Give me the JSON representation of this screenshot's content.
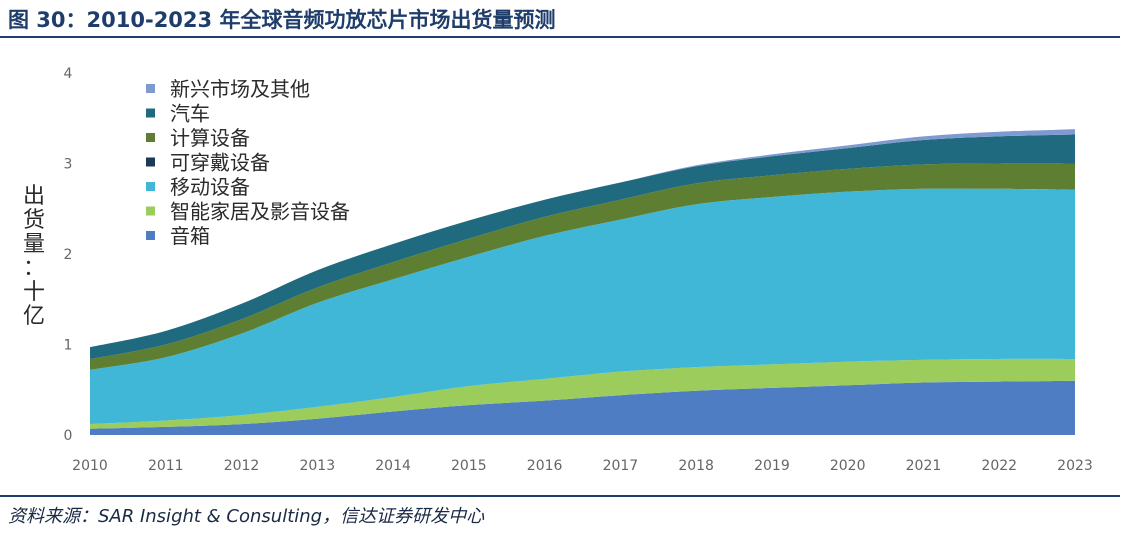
{
  "header": {
    "title": "图 30：2010-2023 年全球音频功放芯片市场出货量预测"
  },
  "footer": {
    "source": "资料来源：SAR Insight & Consulting，信达证券研发中心"
  },
  "chart_data": {
    "type": "area",
    "stacked": true,
    "ylabel": "出货量：十亿",
    "ylim": [
      0,
      4
    ],
    "yticks": [
      "0",
      "1",
      "2",
      "3",
      "4"
    ],
    "categories": [
      "2010",
      "2011",
      "2012",
      "2013",
      "2014",
      "2015",
      "2016",
      "2017",
      "2018",
      "2019",
      "2020",
      "2021",
      "2022",
      "2023"
    ],
    "grid": false,
    "legend_position": "top-left",
    "series": [
      {
        "name": "音箱",
        "color": "#4f7dc3",
        "values": [
          0.07,
          0.09,
          0.12,
          0.18,
          0.26,
          0.33,
          0.38,
          0.44,
          0.49,
          0.52,
          0.55,
          0.58,
          0.59,
          0.6
        ]
      },
      {
        "name": "智能家居及影音设备",
        "color": "#9ccc5c",
        "values": [
          0.05,
          0.07,
          0.1,
          0.13,
          0.16,
          0.21,
          0.24,
          0.26,
          0.26,
          0.26,
          0.26,
          0.25,
          0.25,
          0.24
        ]
      },
      {
        "name": "移动设备",
        "color": "#41b7d8",
        "values": [
          0.6,
          0.7,
          0.9,
          1.15,
          1.3,
          1.43,
          1.58,
          1.68,
          1.8,
          1.85,
          1.88,
          1.89,
          1.88,
          1.87
        ]
      },
      {
        "name": "可穿戴设备",
        "color": "#1b3a5a",
        "values": [
          0.0,
          0.0,
          0.0,
          0.0,
          0.0,
          0.0,
          0.0,
          0.0,
          0.0,
          0.0,
          0.0,
          0.0,
          0.0,
          0.0
        ]
      },
      {
        "name": "计算设备",
        "color": "#5e7f31",
        "values": [
          0.12,
          0.14,
          0.16,
          0.17,
          0.19,
          0.2,
          0.21,
          0.22,
          0.23,
          0.24,
          0.25,
          0.27,
          0.28,
          0.29
        ]
      },
      {
        "name": "汽车",
        "color": "#1f6a7e",
        "values": [
          0.13,
          0.15,
          0.17,
          0.19,
          0.2,
          0.2,
          0.19,
          0.19,
          0.19,
          0.21,
          0.23,
          0.27,
          0.3,
          0.32
        ]
      },
      {
        "name": "新兴市场及其他",
        "color": "#7f9ad0",
        "values": [
          0.0,
          0.0,
          0.0,
          0.0,
          0.0,
          0.0,
          0.0,
          0.0,
          0.01,
          0.02,
          0.03,
          0.04,
          0.05,
          0.06
        ]
      }
    ]
  }
}
